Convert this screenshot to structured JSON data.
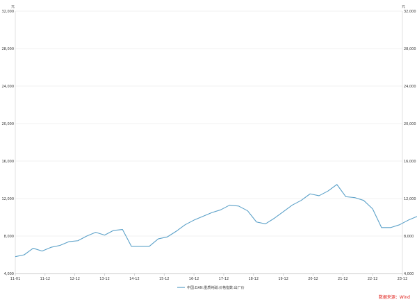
{
  "chart_data": {
    "type": "line",
    "title": "",
    "y_unit_left": "元",
    "y_unit_right": "元",
    "ylim": [
      4000,
      32000
    ],
    "y_ticks": [
      "4,000",
      "8,000",
      "12,000",
      "16,000",
      "20,000",
      "24,000",
      "28,000",
      "32,000"
    ],
    "x_ticks": [
      "11-01",
      "11-12",
      "12-12",
      "13-12",
      "14-12",
      "15-12",
      "16-12",
      "17-12",
      "18-12",
      "19-12",
      "20-12",
      "21-12",
      "22-12",
      "23-12"
    ],
    "grid": "horizontal",
    "legend_position": "bottom-center",
    "series": [
      {
        "name": "中国:DAN:重质纯碱:价格指数:出厂价",
        "color": "#5aa0c8",
        "x_index": [
          0,
          0.3,
          0.6,
          0.9,
          1.2,
          1.5,
          1.8,
          2.1,
          2.4,
          2.7,
          3,
          3.3,
          3.6,
          3.9,
          4.2,
          4.5,
          4.8,
          5.1,
          5.4,
          5.7,
          6,
          6.3,
          6.6,
          6.9,
          7.2,
          7.5,
          7.8,
          8.1,
          8.4,
          8.7,
          9,
          9.3,
          9.6,
          9.9,
          10.2,
          10.5,
          10.8,
          11.1,
          11.4,
          11.7,
          12,
          12.3,
          12.6,
          12.9,
          13.2,
          13.5
        ],
        "values": [
          5800,
          6000,
          6700,
          6400,
          6800,
          7000,
          7400,
          7500,
          8000,
          8400,
          8100,
          8600,
          8700,
          6900,
          6900,
          6900,
          7700,
          7900,
          8500,
          9200,
          9700,
          10100,
          10500,
          10800,
          11300,
          11200,
          10700,
          9500,
          9300,
          9900,
          10600,
          11300,
          11800,
          12500,
          12300,
          12800,
          13500,
          12200,
          12100,
          11800,
          10900,
          8900,
          8900,
          9200,
          9700,
          10100
        ]
      }
    ]
  },
  "legend": {
    "label": "中国:DAN:重质纯碱:价格指数:出厂价"
  },
  "source": {
    "label": "数据来源：Wind"
  }
}
